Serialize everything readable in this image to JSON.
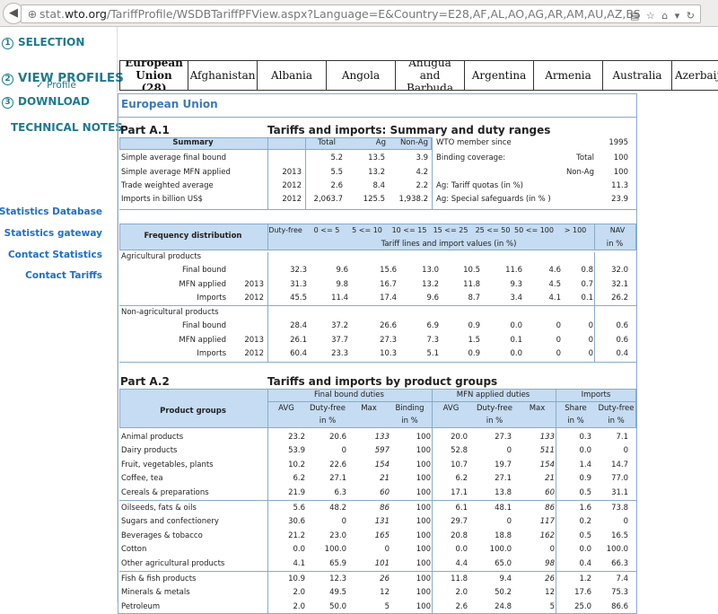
{
  "browser": {
    "url_host": "stat.wto.org",
    "url_path": "/TariffProfile/WSDBTariffPFView.aspx?Language=E&Country=E28,AF,AL,AO,AG,AR,AM,AU,AZ,BS",
    "url_prefix": "stat.",
    "url_host_main": "wto.org"
  },
  "sidebar": {
    "selection": {
      "num": "1",
      "label": "SELECTION"
    },
    "profile": {
      "check": "✓",
      "label": "Profile"
    },
    "view_profiles": {
      "num": "2",
      "label": "VIEW PROFILES"
    },
    "download": {
      "num": "3",
      "label": "DOWNLOAD"
    },
    "technical_notes": "TECHNICAL NOTES",
    "links": [
      "Statistics Database",
      "Statistics gateway",
      "Contact Statistics",
      "Contact Tariffs"
    ]
  },
  "countries": [
    {
      "name": "European Union (28)",
      "line1": "European",
      "line2": "Union (28)"
    },
    {
      "name": "Afghanistan",
      "line1": "Afghanistan",
      "line2": ""
    },
    {
      "name": "Albania",
      "line1": "Albania",
      "line2": ""
    },
    {
      "name": "Angola",
      "line1": "Angola",
      "line2": ""
    },
    {
      "name": "Antigua and Barbuda",
      "line1": "Antigua and",
      "line2": "Barbuda"
    },
    {
      "name": "Argentina",
      "line1": "Argentina",
      "line2": ""
    },
    {
      "name": "Armenia",
      "line1": "Armenia",
      "line2": ""
    },
    {
      "name": "Australia",
      "line1": "Australia",
      "line2": ""
    },
    {
      "name": "Azerbaij",
      "line1": "Azerbaij",
      "line2": ""
    }
  ],
  "profile": {
    "country_title": "European Union",
    "partA1": {
      "label": "Part A.1",
      "title": "Tariffs and imports: Summary and duty ranges",
      "summary_headers": [
        "Summary",
        "Total",
        "Ag",
        "Non-Ag"
      ],
      "wto_since_label": "WTO member since",
      "wto_since_value": "1995",
      "summary_rows": [
        {
          "label": "Simple average final bound",
          "year": "",
          "total": "5.2",
          "ag": "13.5",
          "nonag": "3.9"
        },
        {
          "label": "Simple average MFN applied",
          "year": "2013",
          "total": "5.5",
          "ag": "13.2",
          "nonag": "4.2"
        },
        {
          "label": "Trade weighted average",
          "year": "2012",
          "total": "2.6",
          "ag": "8.4",
          "nonag": "2.2"
        },
        {
          "label": "Imports in billion US$",
          "year": "2012",
          "total": "2,063.7",
          "ag": "125.5",
          "nonag": "1,938.2"
        }
      ],
      "right_rows": [
        {
          "label": "Binding coverage:",
          "sub": "Total",
          "value": "100"
        },
        {
          "label": "",
          "sub": "Non-Ag",
          "value": "100"
        },
        {
          "label": "Ag: Tariff quotas  (in %)",
          "sub": "",
          "value": "11.3"
        },
        {
          "label": "Ag: Special safeguards (in % )",
          "sub": "",
          "value": "23.9"
        }
      ],
      "freq": {
        "title": "Frequency distribution",
        "ranges": [
          "Duty-free",
          "0 <= 5",
          "5 <= 10",
          "10 <= 15",
          "15 <= 25",
          "25 <= 50",
          "50 <= 100",
          "> 100",
          "NAV"
        ],
        "subhead": "Tariff lines and import values (in %)",
        "nav_unit": "in %",
        "groups": [
          {
            "name": "Agricultural products",
            "rows": [
              {
                "label": "Final bound",
                "year": "",
                "values": [
                  "32.3",
                  "9.6",
                  "15.6",
                  "13.0",
                  "10.5",
                  "11.6",
                  "4.6",
                  "0.8",
                  "32.0"
                ]
              },
              {
                "label": "MFN applied",
                "year": "2013",
                "values": [
                  "31.3",
                  "9.8",
                  "16.7",
                  "13.2",
                  "11.8",
                  "9.3",
                  "4.5",
                  "0.7",
                  "32.1"
                ]
              },
              {
                "label": "Imports",
                "year": "2012",
                "values": [
                  "45.5",
                  "11.4",
                  "17.4",
                  "9.6",
                  "8.7",
                  "3.4",
                  "4.1",
                  "0.1",
                  "26.2"
                ]
              }
            ]
          },
          {
            "name": "Non-agricultural products",
            "rows": [
              {
                "label": "Final bound",
                "year": "",
                "values": [
                  "28.4",
                  "37.2",
                  "26.6",
                  "6.9",
                  "0.9",
                  "0.0",
                  "0",
                  "0",
                  "0.6"
                ]
              },
              {
                "label": "MFN applied",
                "year": "2013",
                "values": [
                  "26.1",
                  "37.7",
                  "27.3",
                  "7.3",
                  "1.5",
                  "0.1",
                  "0",
                  "0",
                  "0.6"
                ]
              },
              {
                "label": "Imports",
                "year": "2012",
                "values": [
                  "60.4",
                  "23.3",
                  "10.3",
                  "5.1",
                  "0.9",
                  "0.0",
                  "0",
                  "0",
                  "0.4"
                ]
              }
            ]
          }
        ]
      }
    },
    "partA2": {
      "label": "Part A.2",
      "title": "Tariffs and imports by product groups",
      "group_headers": [
        "Final bound duties",
        "MFN applied duties",
        "Imports"
      ],
      "col_headers": [
        "AVG",
        "Duty-free",
        "Max",
        "Binding",
        "AVG",
        "Duty-free",
        "Max",
        "Share",
        "Duty-free"
      ],
      "col_units": [
        "",
        "in %",
        "",
        "in %",
        "",
        "in %",
        "",
        "in %",
        "in %"
      ],
      "product_groups_label": "Product groups",
      "rows": [
        {
          "name": "Animal products",
          "v": [
            "23.2",
            "20.6",
            "133",
            "100",
            "20.0",
            "27.3",
            "133",
            "0.3",
            "7.1"
          ]
        },
        {
          "name": "Dairy products",
          "v": [
            "53.9",
            "0",
            "597",
            "100",
            "52.8",
            "0",
            "511",
            "0.0",
            "0"
          ]
        },
        {
          "name": "Fruit, vegetables, plants",
          "v": [
            "10.2",
            "22.6",
            "154",
            "100",
            "10.7",
            "19.7",
            "154",
            "1.4",
            "14.7"
          ]
        },
        {
          "name": "Coffee, tea",
          "v": [
            "6.2",
            "27.1",
            "21",
            "100",
            "6.2",
            "27.1",
            "21",
            "0.9",
            "77.0"
          ]
        },
        {
          "name": "Cereals & preparations",
          "v": [
            "21.9",
            "6.3",
            "60",
            "100",
            "17.1",
            "13.8",
            "60",
            "0.5",
            "31.1"
          ]
        },
        {
          "name": "Oilseeds, fats & oils",
          "v": [
            "5.6",
            "48.2",
            "86",
            "100",
            "6.1",
            "48.1",
            "86",
            "1.6",
            "73.8"
          ]
        },
        {
          "name": "Sugars and confectionery",
          "v": [
            "30.6",
            "0",
            "131",
            "100",
            "29.7",
            "0",
            "117",
            "0.2",
            "0"
          ]
        },
        {
          "name": "Beverages & tobacco",
          "v": [
            "21.2",
            "23.0",
            "165",
            "100",
            "20.8",
            "18.8",
            "162",
            "0.5",
            "16.5"
          ]
        },
        {
          "name": "Cotton",
          "v": [
            "0.0",
            "100.0",
            "0",
            "100",
            "0.0",
            "100.0",
            "0",
            "0.0",
            "100.0"
          ]
        },
        {
          "name": "Other agricultural products",
          "v": [
            "4.1",
            "65.9",
            "101",
            "100",
            "4.4",
            "65.0",
            "98",
            "0.4",
            "66.3"
          ]
        },
        {
          "name": "Fish & fish products",
          "v": [
            "10.9",
            "12.3",
            "26",
            "100",
            "11.8",
            "9.4",
            "26",
            "1.2",
            "7.4"
          ]
        },
        {
          "name": "Minerals & metals",
          "v": [
            "2.0",
            "49.5",
            "12",
            "100",
            "2.0",
            "50.2",
            "12",
            "17.6",
            "75.3"
          ]
        },
        {
          "name": "Petroleum",
          "v": [
            "2.0",
            "50.0",
            "5",
            "100",
            "2.6",
            "24.8",
            "5",
            "25.0",
            "86.6"
          ]
        }
      ]
    }
  }
}
